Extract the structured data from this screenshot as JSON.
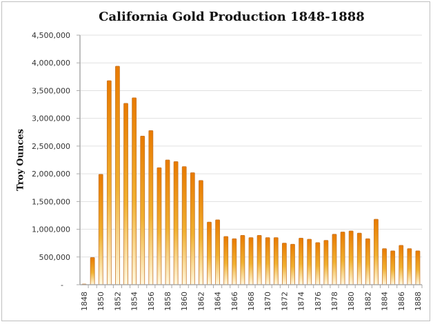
{
  "chart_data": {
    "type": "bar",
    "title": "California Gold Production 1848-1888",
    "xlabel": "",
    "ylabel": "Troy Ounces",
    "ylim": [
      0,
      4500000
    ],
    "yticks": [
      0,
      500000,
      1000000,
      1500000,
      2000000,
      2500000,
      3000000,
      3500000,
      4000000,
      4500000
    ],
    "ytick_labels": [
      "-",
      "500,000",
      "1,000,000",
      "1,500,000",
      "2,000,000",
      "2,500,000",
      "3,000,000",
      "3,500,000",
      "4,000,000",
      "4,500,000"
    ],
    "xtick_labels": [
      "1848",
      "1850",
      "1852",
      "1854",
      "1856",
      "1858",
      "1860",
      "1862",
      "1864",
      "1866",
      "1868",
      "1870",
      "1872",
      "1874",
      "1876",
      "1878",
      "1880",
      "1882",
      "1884",
      "1886",
      "1888"
    ],
    "grid": true,
    "legend": "none",
    "categories": [
      "1848",
      "1849",
      "1850",
      "1851",
      "1852",
      "1853",
      "1854",
      "1855",
      "1856",
      "1857",
      "1858",
      "1859",
      "1860",
      "1861",
      "1862",
      "1863",
      "1864",
      "1865",
      "1866",
      "1867",
      "1868",
      "1869",
      "1870",
      "1871",
      "1872",
      "1873",
      "1874",
      "1875",
      "1876",
      "1877",
      "1878",
      "1879",
      "1880",
      "1881",
      "1882",
      "1883",
      "1884",
      "1885",
      "1886",
      "1887",
      "1888"
    ],
    "values": [
      12000,
      490000,
      1990000,
      3680000,
      3940000,
      3270000,
      3370000,
      2680000,
      2780000,
      2110000,
      2250000,
      2220000,
      2130000,
      2020000,
      1880000,
      1130000,
      1170000,
      870000,
      830000,
      890000,
      850000,
      890000,
      850000,
      850000,
      750000,
      730000,
      840000,
      820000,
      760000,
      800000,
      910000,
      950000,
      970000,
      930000,
      830000,
      1180000,
      650000,
      610000,
      710000,
      650000,
      610000
    ],
    "colors": {
      "bar_top": "#e87a00",
      "bar_bottom": "#fff3d0",
      "bar_border": "#c8782a",
      "grid": "#e0e0e0",
      "axis": "#aaaaaa"
    }
  }
}
